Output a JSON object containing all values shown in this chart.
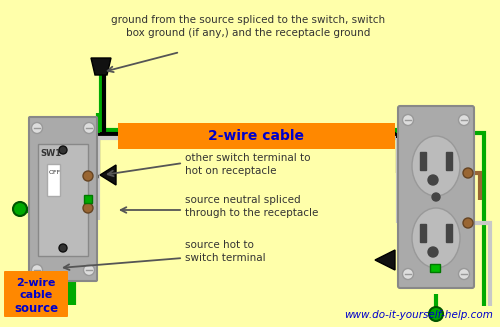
{
  "bg_color": "#FFFFAA",
  "title_url": "www.do-it-yourself-help.com",
  "orange_label": "2-wire cable",
  "orange_label2": "2-wire\ncable",
  "source_label": "source",
  "annotations": {
    "ground": "ground from the source spliced to the switch, switch\nbox ground (if any,) and the receptacle ground",
    "switch_to_hot": "other switch terminal to\nhot on receptacle",
    "neutral": "source neutral spliced\nthrough to the receptacle",
    "source_hot": "source hot to\nswitch terminal"
  },
  "orange_bg": "#FF8800",
  "text_blue": "#0000CC",
  "text_dark": "#333333",
  "col_black": "#000000",
  "col_white": "#C8C8C8",
  "col_green": "#00AA00",
  "col_gray": "#AAAAAA",
  "col_dark_gray": "#888888",
  "col_brown": "#996633"
}
